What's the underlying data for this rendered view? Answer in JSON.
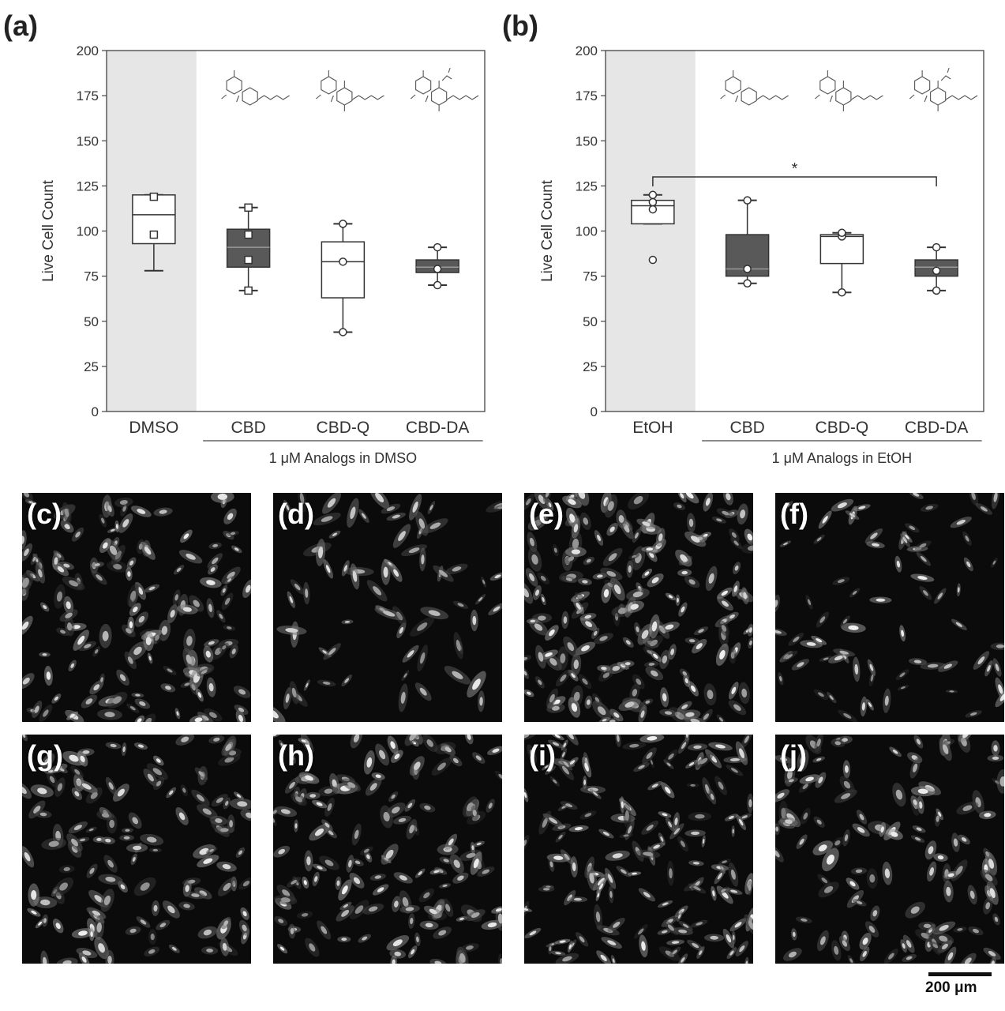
{
  "panels": {
    "a": "(a)",
    "b": "(b)",
    "c": "(c)",
    "d": "(d)",
    "e": "(e)",
    "f": "(f)",
    "g": "(g)",
    "h": "(h)",
    "i": "(i)",
    "j": "(j)"
  },
  "scale_bar": "200 μm",
  "chart_data": [
    {
      "type": "box",
      "ylabel": "Live Cell Count",
      "ylim": [
        0,
        200
      ],
      "yticks": [
        0,
        25,
        50,
        75,
        100,
        125,
        150,
        175,
        200
      ],
      "categories": [
        "DMSO",
        "CBD",
        "CBD-Q",
        "CBD-DA"
      ],
      "group_label": "1 μM Analogs in DMSO",
      "control_shaded": true,
      "boxes": [
        {
          "category": "DMSO",
          "min": 78,
          "q1": 93,
          "median": 109,
          "q3": 120,
          "max": 120,
          "fill": "#ffffff",
          "points": [
            98,
            119
          ],
          "marker": "square"
        },
        {
          "category": "CBD",
          "min": 67,
          "q1": 80,
          "median": 91,
          "q3": 101,
          "max": 113,
          "fill": "#595959",
          "points": [
            67,
            84,
            98,
            113
          ],
          "marker": "square"
        },
        {
          "category": "CBD-Q",
          "min": 44,
          "q1": 63,
          "median": 83,
          "q3": 94,
          "max": 104,
          "fill": "#ffffff",
          "points": [
            44,
            83,
            104
          ],
          "marker": "circle"
        },
        {
          "category": "CBD-DA",
          "min": 70,
          "q1": 77,
          "median": 80,
          "q3": 84,
          "max": 91,
          "fill": "#595959",
          "points": [
            70,
            79,
            91
          ],
          "marker": "circle"
        }
      ]
    },
    {
      "type": "box",
      "ylabel": "Live Cell Count",
      "ylim": [
        0,
        200
      ],
      "yticks": [
        0,
        25,
        50,
        75,
        100,
        125,
        150,
        175,
        200
      ],
      "categories": [
        "EtOH",
        "CBD",
        "CBD-Q",
        "CBD-DA"
      ],
      "group_label": "1 μM Analogs in EtOH",
      "control_shaded": true,
      "significance": {
        "from": "EtOH",
        "to": "CBD-DA",
        "y": 130,
        "label": "*"
      },
      "boxes": [
        {
          "category": "EtOH",
          "min": 104,
          "q1": 104,
          "median": 114,
          "q3": 117,
          "max": 120,
          "fill": "#ffffff",
          "points": [
            84,
            112,
            116,
            120
          ],
          "marker": "circle"
        },
        {
          "category": "CBD",
          "min": 71,
          "q1": 75,
          "median": 79,
          "q3": 98,
          "max": 117,
          "fill": "#595959",
          "points": [
            71,
            79,
            117
          ],
          "marker": "circle"
        },
        {
          "category": "CBD-Q",
          "min": 66,
          "q1": 82,
          "median": 97,
          "q3": 98,
          "max": 99,
          "fill": "#ffffff",
          "points": [
            66,
            97,
            99
          ],
          "marker": "circle"
        },
        {
          "category": "CBD-DA",
          "min": 67,
          "q1": 75,
          "median": 80,
          "q3": 84,
          "max": 91,
          "fill": "#595959",
          "points": [
            67,
            78,
            91
          ],
          "marker": "circle"
        }
      ]
    }
  ]
}
